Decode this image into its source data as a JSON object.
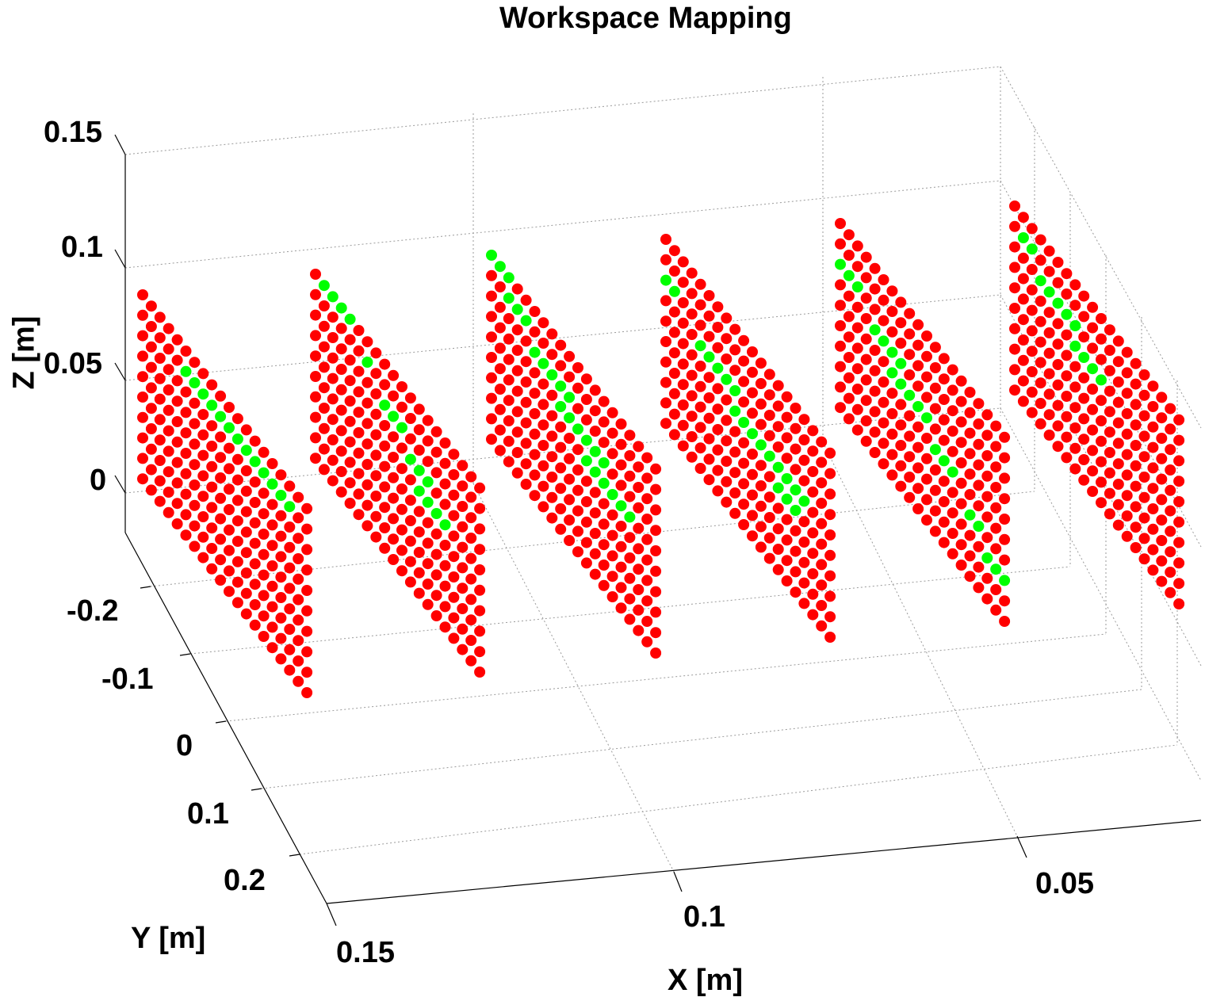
{
  "chart_data": {
    "type": "scatter",
    "dimensions": 3,
    "title": "Workspace Mapping",
    "xlabel": "X [m]",
    "ylabel": "Y [m]",
    "zlabel": "Z [m]",
    "x_ticks": [
      "0.15",
      "0.1",
      "0.05"
    ],
    "y_ticks": [
      "-0.2",
      "-0.1",
      "0",
      "0.1",
      "0.2"
    ],
    "z_ticks": [
      "0.15",
      "0.1",
      "0.05",
      "0"
    ],
    "xlim": [
      0.15,
      0.0
    ],
    "ylim": [
      -0.25,
      0.25
    ],
    "zlim": [
      -0.05,
      0.15
    ],
    "grid": true,
    "view": "3d-perspective",
    "x_slices": [
      0.15,
      0.125,
      0.1,
      0.075,
      0.05,
      0.025
    ],
    "points_per_line": 20,
    "lines_per_slice": 10,
    "colors": {
      "unreachable": "#ff0000",
      "reachable": "#00ff00",
      "axes": "#000000",
      "grid": "#9a9a9a"
    },
    "reachable_segments": [
      [
        [
          1,
          5,
          18
        ]
      ],
      [
        [
          0,
          1,
          5
        ],
        [
          1,
          6,
          7
        ],
        [
          2,
          8,
          11
        ],
        [
          3,
          11,
          14
        ],
        [
          4,
          12,
          16
        ]
      ],
      [
        [
          0,
          0,
          3
        ],
        [
          1,
          2,
          5
        ],
        [
          2,
          5,
          10
        ],
        [
          3,
          8,
          14
        ],
        [
          4,
          11,
          17
        ]
      ],
      [
        [
          2,
          0,
          2
        ],
        [
          3,
          4,
          9
        ],
        [
          4,
          8,
          17
        ],
        [
          5,
          13,
          16
        ]
      ],
      [
        [
          2,
          0,
          3
        ],
        [
          3,
          4,
          8
        ],
        [
          4,
          6,
          11
        ],
        [
          5,
          11,
          14
        ],
        [
          6,
          15,
          17
        ],
        [
          7,
          17,
          20
        ]
      ],
      [
        [
          1,
          1,
          3
        ],
        [
          2,
          3,
          8
        ],
        [
          3,
          7,
          11
        ]
      ]
    ]
  }
}
